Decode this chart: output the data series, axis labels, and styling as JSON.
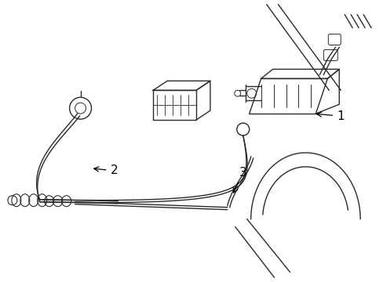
{
  "background_color": "#ffffff",
  "line_color": "#2a2a2a",
  "label_color": "#000000",
  "lw": 1.0,
  "figsize": [
    4.89,
    3.6
  ],
  "dpi": 100
}
